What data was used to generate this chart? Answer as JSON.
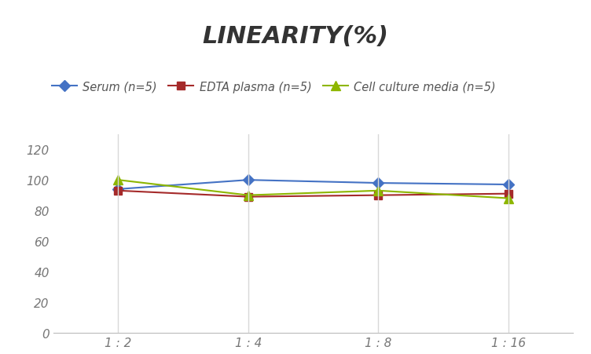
{
  "title": "LINEARITY(%)",
  "x_labels": [
    "1 : 2",
    "1 : 4",
    "1 : 8",
    "1 : 16"
  ],
  "x_positions": [
    0,
    1,
    2,
    3
  ],
  "series": [
    {
      "name": "Serum (n=5)",
      "values": [
        94,
        100,
        98,
        97
      ],
      "color": "#4472C4",
      "marker": "D",
      "marker_size": 7
    },
    {
      "name": "EDTA plasma (n=5)",
      "values": [
        93,
        89,
        90,
        91
      ],
      "color": "#A52A2A",
      "marker": "s",
      "marker_size": 7
    },
    {
      "name": "Cell culture media (n=5)",
      "values": [
        100,
        90,
        93,
        88
      ],
      "color": "#8DB600",
      "marker": "^",
      "marker_size": 8
    }
  ],
  "ylim": [
    0,
    130
  ],
  "yticks": [
    0,
    20,
    40,
    60,
    80,
    100,
    120
  ],
  "grid_color": "#D8D8D8",
  "background_color": "#FFFFFF",
  "title_fontsize": 22,
  "legend_fontsize": 10.5,
  "tick_fontsize": 11
}
